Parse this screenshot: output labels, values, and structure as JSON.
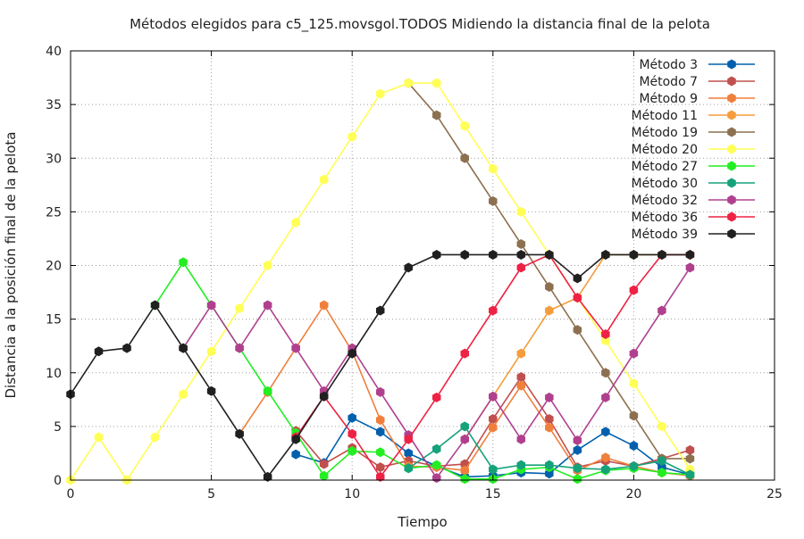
{
  "chart_data": {
    "type": "line",
    "title": "Métodos elegidos para c5_125.movsgol.TODOS Midiendo la distancia final de la pelota",
    "xlabel": "Tiempo",
    "ylabel": "Distancia a la posición final de la pelota",
    "xlim": [
      0,
      25
    ],
    "ylim": [
      0,
      40
    ],
    "xticks": [
      0,
      5,
      10,
      15,
      20,
      25
    ],
    "yticks": [
      0,
      5,
      10,
      15,
      20,
      25,
      30,
      35,
      40
    ],
    "grid": true,
    "legend_position": "top-right",
    "series": [
      {
        "name": "Método 3",
        "color": "#0060ad",
        "points": [
          [
            8,
            2.4
          ],
          [
            9,
            1.6
          ],
          [
            10,
            5.8
          ],
          [
            11,
            4.5
          ],
          [
            12,
            2.5
          ],
          [
            13,
            1.3
          ],
          [
            14,
            0.3
          ],
          [
            15,
            0.4
          ],
          [
            16,
            0.7
          ],
          [
            17,
            0.6
          ],
          [
            18,
            2.8
          ],
          [
            19,
            4.5
          ],
          [
            20,
            3.2
          ],
          [
            21,
            1.2
          ],
          [
            22,
            0.5
          ]
        ]
      },
      {
        "name": "Método 7",
        "color": "#c0504d",
        "points": [
          [
            8,
            4.6
          ],
          [
            9,
            1.5
          ],
          [
            10,
            3.0
          ],
          [
            11,
            1.2
          ],
          [
            12,
            1.8
          ],
          [
            13,
            1.3
          ],
          [
            14,
            1.5
          ],
          [
            15,
            5.7
          ],
          [
            16,
            9.6
          ],
          [
            17,
            5.7
          ],
          [
            18,
            1.2
          ],
          [
            19,
            1.8
          ],
          [
            20,
            1.3
          ],
          [
            21,
            2.0
          ],
          [
            22,
            2.8
          ]
        ]
      },
      {
        "name": "Método 9",
        "color": "#f07f3c",
        "points": [
          [
            6,
            4.3
          ],
          [
            7,
            8.2
          ],
          [
            8,
            12.3
          ],
          [
            9,
            16.3
          ],
          [
            10,
            12.0
          ],
          [
            11,
            5.6
          ],
          [
            12,
            1.3
          ],
          [
            13,
            1.2
          ],
          [
            14,
            0.9
          ],
          [
            15,
            4.9
          ],
          [
            16,
            8.8
          ],
          [
            17,
            4.9
          ],
          [
            18,
            0.9
          ],
          [
            19,
            2.1
          ],
          [
            20,
            1.3
          ],
          [
            21,
            0.7
          ],
          [
            22,
            0.4
          ]
        ]
      },
      {
        "name": "Método 11",
        "color": "#f59d3c",
        "points": [
          [
            14,
            3.8
          ],
          [
            15,
            7.8
          ],
          [
            16,
            11.8
          ],
          [
            17,
            15.8
          ],
          [
            18,
            17.0
          ],
          [
            19,
            21.0
          ],
          [
            20,
            21.0
          ],
          [
            21,
            21.0
          ],
          [
            22,
            21.0
          ]
        ]
      },
      {
        "name": "Método 19",
        "color": "#8c7050",
        "points": [
          [
            12,
            37.0
          ],
          [
            13,
            34.0
          ],
          [
            14,
            30.0
          ],
          [
            15,
            26.0
          ],
          [
            16,
            22.0
          ],
          [
            17,
            18.0
          ],
          [
            18,
            14.0
          ],
          [
            19,
            10.0
          ],
          [
            20,
            6.0
          ],
          [
            21,
            2.0
          ],
          [
            22,
            2.0
          ]
        ]
      },
      {
        "name": "Método 20",
        "color": "#ffff55",
        "points": [
          [
            0,
            0.0
          ],
          [
            1,
            4.0
          ],
          [
            2,
            0.0
          ],
          [
            3,
            4.0
          ],
          [
            4,
            8.0
          ],
          [
            5,
            12.0
          ],
          [
            6,
            16.0
          ],
          [
            7,
            20.0
          ],
          [
            8,
            24.0
          ],
          [
            9,
            28.0
          ],
          [
            10,
            32.0
          ],
          [
            11,
            36.0
          ],
          [
            12,
            37.0
          ],
          [
            13,
            37.0
          ],
          [
            14,
            33.0
          ],
          [
            15,
            29.0
          ],
          [
            16,
            25.0
          ],
          [
            17,
            21.0
          ],
          [
            18,
            17.0
          ],
          [
            19,
            13.0
          ],
          [
            20,
            9.0
          ],
          [
            21,
            5.0
          ],
          [
            22,
            1.0
          ]
        ]
      },
      {
        "name": "Método 27",
        "color": "#22ee22",
        "points": [
          [
            3,
            16.3
          ],
          [
            4,
            20.3
          ],
          [
            5,
            16.3
          ],
          [
            6,
            12.3
          ],
          [
            7,
            8.3
          ],
          [
            8,
            4.4
          ],
          [
            9,
            0.4
          ],
          [
            10,
            2.7
          ],
          [
            11,
            2.6
          ],
          [
            12,
            1.1
          ],
          [
            13,
            1.4
          ],
          [
            14,
            0.1
          ],
          [
            15,
            0.1
          ],
          [
            16,
            1.0
          ],
          [
            17,
            1.2
          ],
          [
            18,
            0.1
          ],
          [
            19,
            0.9
          ],
          [
            20,
            1.1
          ],
          [
            21,
            0.7
          ],
          [
            22,
            0.5
          ]
        ]
      },
      {
        "name": "Método 30",
        "color": "#15a27a",
        "points": [
          [
            12,
            1.1
          ],
          [
            13,
            2.9
          ],
          [
            14,
            5.0
          ],
          [
            15,
            1.0
          ],
          [
            16,
            1.4
          ],
          [
            17,
            1.4
          ],
          [
            18,
            1.1
          ],
          [
            19,
            1.0
          ],
          [
            20,
            1.3
          ],
          [
            21,
            1.8
          ],
          [
            22,
            0.5
          ]
        ]
      },
      {
        "name": "Método 32",
        "color": "#b0408e",
        "points": [
          [
            4,
            12.3
          ],
          [
            5,
            16.3
          ],
          [
            6,
            12.3
          ],
          [
            7,
            16.3
          ],
          [
            8,
            12.3
          ],
          [
            9,
            8.3
          ],
          [
            10,
            12.3
          ],
          [
            11,
            8.2
          ],
          [
            12,
            4.2
          ],
          [
            13,
            0.2
          ],
          [
            14,
            3.8
          ],
          [
            15,
            7.8
          ],
          [
            16,
            3.8
          ],
          [
            17,
            7.7
          ],
          [
            18,
            3.7
          ],
          [
            19,
            7.7
          ],
          [
            20,
            11.8
          ],
          [
            21,
            15.8
          ],
          [
            22,
            19.8
          ]
        ]
      },
      {
        "name": "Método 36",
        "color": "#ee2244",
        "points": [
          [
            8,
            4.0
          ],
          [
            9,
            7.8
          ],
          [
            10,
            4.3
          ],
          [
            11,
            0.3
          ],
          [
            12,
            3.8
          ],
          [
            13,
            7.7
          ],
          [
            14,
            11.8
          ],
          [
            15,
            15.8
          ],
          [
            16,
            19.8
          ],
          [
            17,
            21.0
          ],
          [
            18,
            17.0
          ],
          [
            19,
            13.6
          ],
          [
            20,
            17.7
          ],
          [
            21,
            21.0
          ],
          [
            22,
            21.0
          ]
        ]
      },
      {
        "name": "Método 39",
        "color": "#202020",
        "points": [
          [
            0,
            8.0
          ],
          [
            1,
            12.0
          ],
          [
            2,
            12.3
          ],
          [
            3,
            16.3
          ],
          [
            4,
            12.3
          ],
          [
            5,
            8.3
          ],
          [
            6,
            4.3
          ],
          [
            7,
            0.3
          ],
          [
            8,
            3.8
          ],
          [
            9,
            7.8
          ],
          [
            10,
            11.8
          ],
          [
            11,
            15.8
          ],
          [
            12,
            19.8
          ],
          [
            13,
            21.0
          ],
          [
            14,
            21.0
          ],
          [
            15,
            21.0
          ],
          [
            16,
            21.0
          ],
          [
            17,
            21.0
          ],
          [
            18,
            18.8
          ],
          [
            19,
            21.0
          ],
          [
            20,
            21.0
          ],
          [
            21,
            21.0
          ],
          [
            22,
            21.0
          ]
        ]
      }
    ]
  }
}
